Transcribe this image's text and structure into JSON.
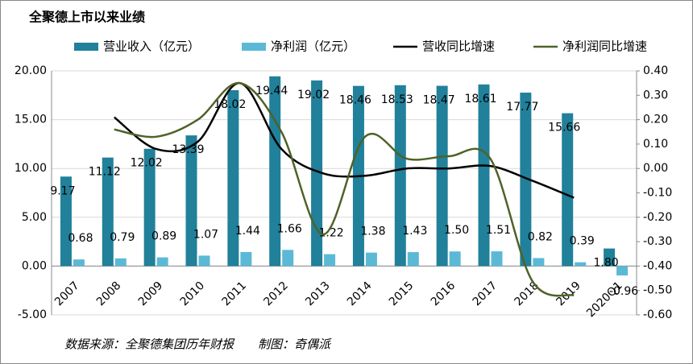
{
  "chart_data": {
    "type": "bar-line",
    "title": "全聚德上市以来业绩",
    "source": "数据来源：全聚德集团历年财报　　制图：奇偶派",
    "categories": [
      "2007",
      "2008",
      "2009",
      "2010",
      "2011",
      "2012",
      "2013",
      "2014",
      "2015",
      "2016",
      "2017",
      "2018",
      "2019",
      "2020Q1"
    ],
    "series": [
      {
        "name": "营业收入（亿元）",
        "type": "bar",
        "color": "#21809a",
        "values": [
          9.17,
          11.12,
          12.02,
          13.39,
          18.02,
          19.44,
          19.02,
          18.46,
          18.53,
          18.47,
          18.61,
          17.77,
          15.66,
          1.8
        ],
        "value_labels": [
          "9.17",
          "11.12",
          "12.02",
          "13.39",
          "18.02",
          "19.44",
          "19.02",
          "18.46",
          "18.53",
          "18.47",
          "18.61",
          "17.77",
          "15.66",
          "1.80"
        ]
      },
      {
        "name": "净利润（亿元）",
        "type": "bar",
        "color": "#5cb9d6",
        "values": [
          0.68,
          0.79,
          0.89,
          1.07,
          1.44,
          1.66,
          1.22,
          1.38,
          1.43,
          1.5,
          1.51,
          0.82,
          0.39,
          -0.96
        ],
        "value_labels": [
          "0.68",
          "0.79",
          "0.89",
          "1.07",
          "1.44",
          "1.66",
          "1.22",
          "1.38",
          "1.43",
          "1.50",
          "1.51",
          "0.82",
          "0.39",
          "-0.96"
        ]
      },
      {
        "name": "营收同比增速",
        "type": "line",
        "axis": "y2",
        "color": "#000000",
        "values": [
          null,
          0.21,
          0.08,
          0.11,
          0.35,
          0.08,
          -0.02,
          -0.03,
          0.0,
          0.0,
          0.01,
          -0.05,
          -0.12,
          null
        ]
      },
      {
        "name": "净利润同比增速",
        "type": "line",
        "axis": "y2",
        "color": "#4f6228",
        "values": [
          null,
          0.16,
          0.13,
          0.2,
          0.35,
          0.15,
          -0.27,
          0.13,
          0.04,
          0.05,
          0.04,
          -0.46,
          -0.52,
          null
        ]
      }
    ],
    "ylim": [
      -5,
      20
    ],
    "yticks": [
      {
        "value": -5,
        "label": "-5.00"
      },
      {
        "value": 0,
        "label": "0.00"
      },
      {
        "value": 5,
        "label": "5.00"
      },
      {
        "value": 10,
        "label": "10.00"
      },
      {
        "value": 15,
        "label": "15.00"
      },
      {
        "value": 20,
        "label": "20.00"
      }
    ],
    "y2lim": [
      -0.6,
      0.4
    ],
    "y2ticks": [
      {
        "value": -0.6,
        "label": "-0.60"
      },
      {
        "value": -0.5,
        "label": "-0.50"
      },
      {
        "value": -0.4,
        "label": "-0.40"
      },
      {
        "value": -0.3,
        "label": "-0.30"
      },
      {
        "value": -0.2,
        "label": "-0.20"
      },
      {
        "value": -0.1,
        "label": "-0.10"
      },
      {
        "value": 0,
        "label": "0.00"
      },
      {
        "value": 0.1,
        "label": "0.10"
      },
      {
        "value": 0.2,
        "label": "0.20"
      },
      {
        "value": 0.3,
        "label": "0.30"
      },
      {
        "value": 0.4,
        "label": "0.40"
      }
    ],
    "grid": true,
    "legend": "top"
  }
}
